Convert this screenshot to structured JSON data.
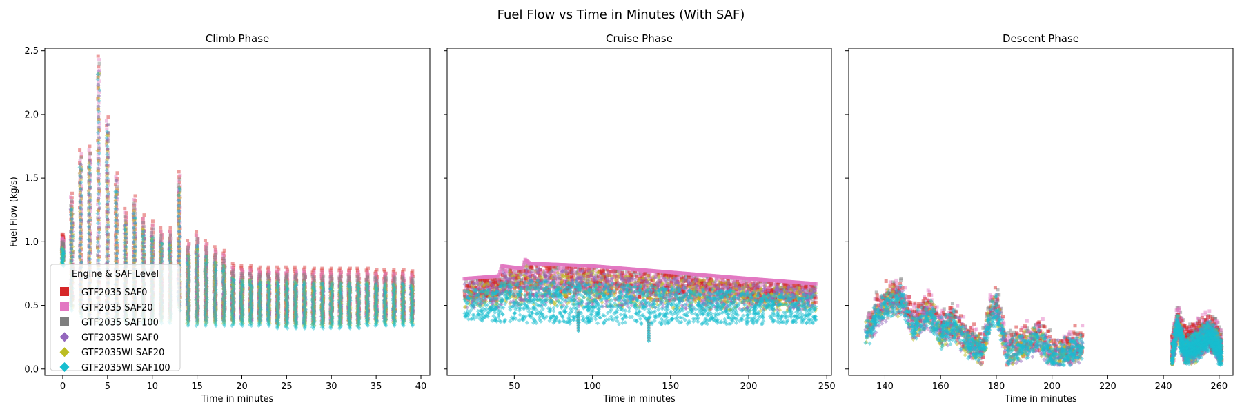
{
  "figure": {
    "title": "Fuel Flow vs Time in Minutes (With SAF)"
  },
  "legend": {
    "title": "Engine & SAF Level",
    "placement": "lower-left of first panel"
  },
  "chart_data": [
    {
      "type": "scatter",
      "title": "Climb Phase",
      "xlabel": "Time in minutes",
      "ylabel": "Fuel Flow (kg/s)",
      "xlim": [
        -2,
        41
      ],
      "ylim": [
        -0.05,
        2.52
      ],
      "xticks": [
        0,
        5,
        10,
        15,
        20,
        25,
        30,
        35,
        40
      ],
      "yticks": [
        0.0,
        0.5,
        1.0,
        1.5,
        2.0,
        2.5
      ],
      "ytick_labels": [
        "0.0",
        "0.5",
        "1.0",
        "1.5",
        "2.0",
        "2.5"
      ],
      "grid": false,
      "approx_columns": [
        {
          "x": 0,
          "min": 0.85,
          "max": 1.0
        },
        {
          "x": 1,
          "min": 0.5,
          "max": 1.32
        },
        {
          "x": 2,
          "min": 0.45,
          "max": 1.66
        },
        {
          "x": 3,
          "min": 0.4,
          "max": 1.69
        },
        {
          "x": 4,
          "min": 0.4,
          "max": 2.4
        },
        {
          "x": 5,
          "min": 0.4,
          "max": 1.92
        },
        {
          "x": 6,
          "min": 0.4,
          "max": 1.48
        },
        {
          "x": 7,
          "min": 0.4,
          "max": 1.2
        },
        {
          "x": 8,
          "min": 0.4,
          "max": 1.3
        },
        {
          "x": 9,
          "min": 0.4,
          "max": 1.15
        },
        {
          "x": 10,
          "min": 0.4,
          "max": 1.1
        },
        {
          "x": 11,
          "min": 0.4,
          "max": 1.05
        },
        {
          "x": 12,
          "min": 0.4,
          "max": 1.05
        },
        {
          "x": 13,
          "min": 0.5,
          "max": 1.49
        },
        {
          "x": 14,
          "min": 0.38,
          "max": 0.95
        },
        {
          "x": 15,
          "min": 0.38,
          "max": 1.02
        },
        {
          "x": 16,
          "min": 0.38,
          "max": 0.95
        },
        {
          "x": 17,
          "min": 0.38,
          "max": 0.9
        },
        {
          "x": 18,
          "min": 0.38,
          "max": 0.87
        },
        {
          "x": 19,
          "min": 0.38,
          "max": 0.77
        },
        {
          "x": 20,
          "min": 0.38,
          "max": 0.75
        },
        {
          "x": 21,
          "min": 0.38,
          "max": 0.75
        },
        {
          "x": 22,
          "min": 0.38,
          "max": 0.74
        },
        {
          "x": 23,
          "min": 0.38,
          "max": 0.74
        },
        {
          "x": 24,
          "min": 0.36,
          "max": 0.74
        },
        {
          "x": 25,
          "min": 0.36,
          "max": 0.74
        },
        {
          "x": 26,
          "min": 0.36,
          "max": 0.74
        },
        {
          "x": 27,
          "min": 0.36,
          "max": 0.74
        },
        {
          "x": 28,
          "min": 0.36,
          "max": 0.73
        },
        {
          "x": 29,
          "min": 0.36,
          "max": 0.73
        },
        {
          "x": 30,
          "min": 0.36,
          "max": 0.73
        },
        {
          "x": 31,
          "min": 0.36,
          "max": 0.73
        },
        {
          "x": 32,
          "min": 0.36,
          "max": 0.73
        },
        {
          "x": 33,
          "min": 0.36,
          "max": 0.73
        },
        {
          "x": 34,
          "min": 0.38,
          "max": 0.73
        },
        {
          "x": 35,
          "min": 0.38,
          "max": 0.72
        },
        {
          "x": 36,
          "min": 0.38,
          "max": 0.72
        },
        {
          "x": 37,
          "min": 0.38,
          "max": 0.72
        },
        {
          "x": 38,
          "min": 0.38,
          "max": 0.72
        },
        {
          "x": 39,
          "min": 0.38,
          "max": 0.71
        }
      ],
      "outliers": [
        {
          "x": 5,
          "y": 1.92
        },
        {
          "x": 6,
          "y": 1.48
        }
      ]
    },
    {
      "type": "scatter",
      "title": "Cruise Phase",
      "xlabel": "Time in minutes",
      "ylabel": "",
      "xlim": [
        7,
        253
      ],
      "ylim": [
        -0.05,
        2.52
      ],
      "xticks": [
        50,
        100,
        150,
        200,
        250
      ],
      "yticks": [
        0.0,
        0.5,
        1.0,
        1.5,
        2.0,
        2.5
      ],
      "shared_y": true,
      "grid": false,
      "x_range": [
        18,
        243
      ],
      "band_top": [
        [
          18,
          0.71
        ],
        [
          40,
          0.73
        ],
        [
          42,
          0.81
        ],
        [
          55,
          0.79
        ],
        [
          57,
          0.86
        ],
        [
          60,
          0.83
        ],
        [
          100,
          0.81
        ],
        [
          150,
          0.76
        ],
        [
          200,
          0.71
        ],
        [
          243,
          0.67
        ]
      ],
      "band_bottom": [
        [
          18,
          0.38
        ],
        [
          60,
          0.36
        ],
        [
          100,
          0.35
        ],
        [
          150,
          0.35
        ],
        [
          200,
          0.35
        ],
        [
          243,
          0.36
        ]
      ],
      "dips": [
        {
          "x": 91,
          "y": 0.3
        },
        {
          "x": 136,
          "y": 0.22
        }
      ]
    },
    {
      "type": "scatter",
      "title": "Descent Phase",
      "xlabel": "Time in minutes",
      "ylabel": "",
      "xlim": [
        127,
        265
      ],
      "ylim": [
        -0.05,
        2.52
      ],
      "xticks": [
        140,
        160,
        180,
        200,
        220,
        240,
        260
      ],
      "yticks": [
        0.0,
        0.5,
        1.0,
        1.5,
        2.0,
        2.5
      ],
      "shared_y": true,
      "grid": false,
      "segments": [
        {
          "x_range": [
            133,
            211
          ],
          "profile": [
            [
              133,
              0.3
            ],
            [
              138,
              0.45
            ],
            [
              142,
              0.55
            ],
            [
              146,
              0.55
            ],
            [
              150,
              0.35
            ],
            [
              156,
              0.45
            ],
            [
              160,
              0.3
            ],
            [
              165,
              0.35
            ],
            [
              170,
              0.2
            ],
            [
              175,
              0.15
            ],
            [
              178,
              0.45
            ],
            [
              180,
              0.5
            ],
            [
              184,
              0.12
            ],
            [
              190,
              0.2
            ],
            [
              196,
              0.25
            ],
            [
              200,
              0.1
            ],
            [
              206,
              0.15
            ],
            [
              211,
              0.18
            ]
          ]
        },
        {
          "x_range": [
            243,
            261
          ],
          "profile": [
            [
              243,
              0.1
            ],
            [
              245,
              0.35
            ],
            [
              248,
              0.15
            ],
            [
              252,
              0.2
            ],
            [
              256,
              0.28
            ],
            [
              259,
              0.22
            ],
            [
              261,
              0.12
            ]
          ]
        }
      ]
    }
  ],
  "series": [
    {
      "name": "GTF2035 SAF0",
      "marker": "square",
      "color": "#d62728"
    },
    {
      "name": "GTF2035 SAF20",
      "marker": "square",
      "color": "#e377c2"
    },
    {
      "name": "GTF2035 SAF100",
      "marker": "square",
      "color": "#7f7f7f"
    },
    {
      "name": "GTF2035WI SAF0",
      "marker": "diamond",
      "color": "#9467bd"
    },
    {
      "name": "GTF2035WI SAF20",
      "marker": "diamond",
      "color": "#bcbd22"
    },
    {
      "name": "GTF2035WI SAF100",
      "marker": "diamond",
      "color": "#17becf"
    }
  ]
}
